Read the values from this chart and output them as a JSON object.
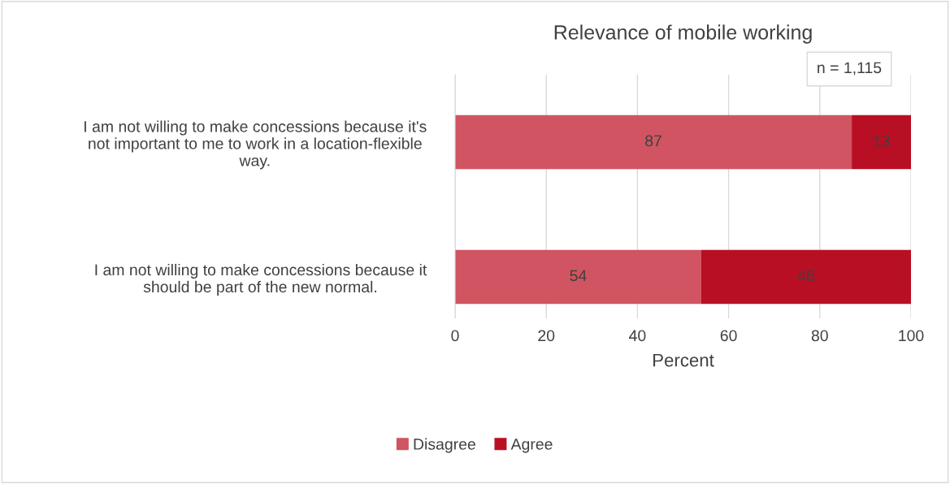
{
  "chart_data": {
    "type": "bar",
    "orientation": "horizontal",
    "stacked": true,
    "title": "Relevance of mobile working",
    "xlabel": "Percent",
    "categories": [
      "I am not willing to make concessions because it's not important to me to work in a location-flexible way.",
      "I am not willing to make concessions because it should be part of the new normal."
    ],
    "series": [
      {
        "name": "Disagree",
        "color": "#d05461",
        "values": [
          87,
          54
        ]
      },
      {
        "name": "Agree",
        "color": "#b90f24",
        "values": [
          13,
          46
        ]
      }
    ],
    "xlim": [
      0,
      100
    ],
    "xticks": [
      0,
      20,
      40,
      60,
      80,
      100
    ],
    "grid": "x",
    "legend": "bottom",
    "data_labels": true,
    "annotations": [
      "n = 1,115"
    ]
  }
}
